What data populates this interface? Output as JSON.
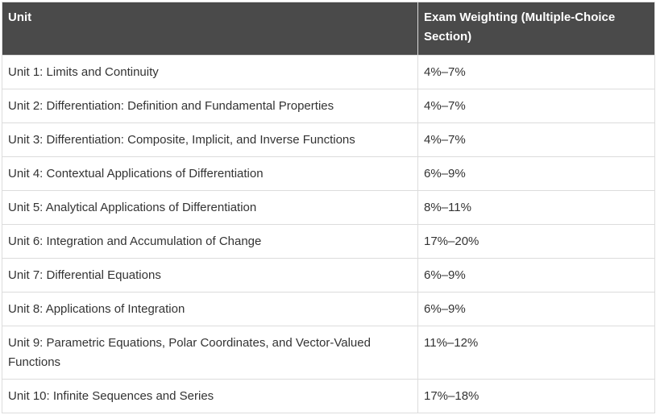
{
  "table": {
    "headers": [
      "Unit",
      "Exam Weighting (Multiple-Choice Section)"
    ],
    "rows": [
      {
        "unit": "Unit 1: Limits and Continuity",
        "weighting": "4%–7%"
      },
      {
        "unit": "Unit 2: Differentiation: Definition and Fundamental Properties",
        "weighting": "4%–7%"
      },
      {
        "unit": "Unit 3: Differentiation: Composite, Implicit, and Inverse Functions",
        "weighting": "4%–7%"
      },
      {
        "unit": "Unit 4: Contextual Applications of Differentiation",
        "weighting": "6%–9%"
      },
      {
        "unit": "Unit 5: Analytical Applications of Differentiation",
        "weighting": "8%–11%"
      },
      {
        "unit": "Unit 6: Integration and Accumulation of Change",
        "weighting": "17%–20%"
      },
      {
        "unit": "Unit 7: Differential Equations",
        "weighting": "6%–9%"
      },
      {
        "unit": "Unit 8: Applications of Integration",
        "weighting": "6%–9%"
      },
      {
        "unit": "Unit 9: Parametric Equations, Polar Coordinates, and Vector-Valued Functions",
        "weighting": "11%–12%"
      },
      {
        "unit": "Unit 10: Infinite Sequences and Series",
        "weighting": "17%–18%"
      }
    ]
  },
  "colors": {
    "header_bg": "#4a4a4a",
    "header_text": "#ffffff",
    "border": "#dcdcdc",
    "body_text": "#333333"
  }
}
